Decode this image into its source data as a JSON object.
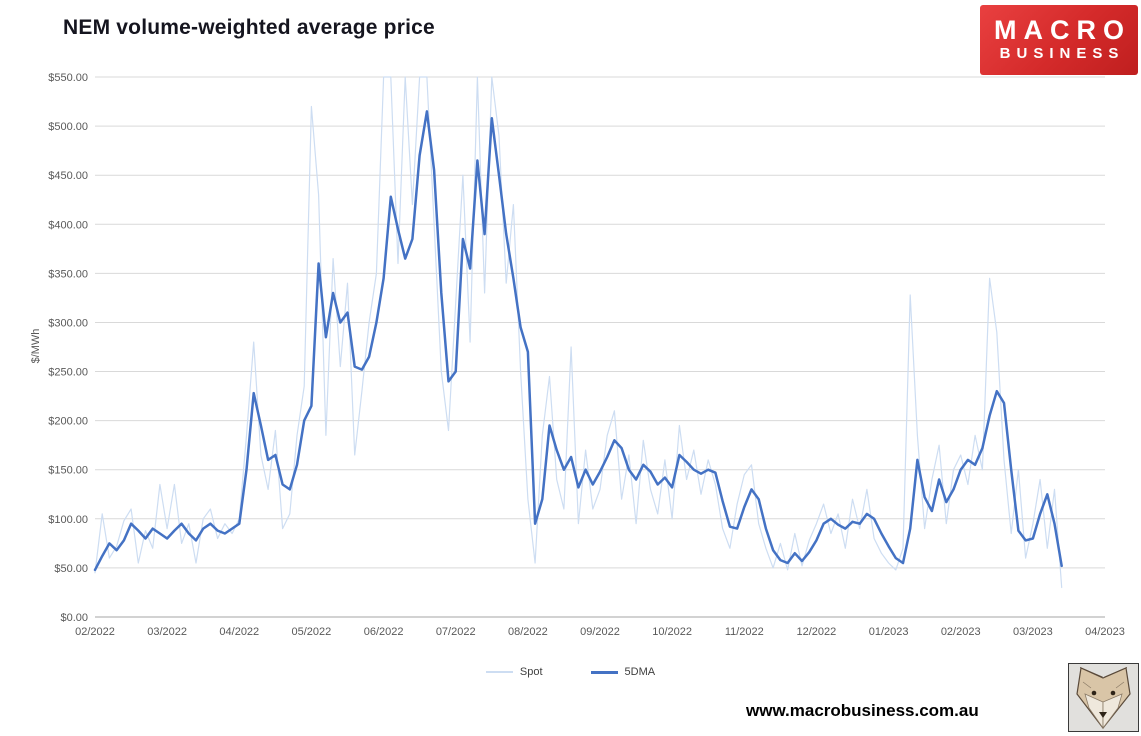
{
  "logo": {
    "line1": "MACRO",
    "line2": "BUSINESS"
  },
  "footer": {
    "url": "www.macrobusiness.com.au"
  },
  "chart_data": {
    "type": "line",
    "title": "NEM volume-weighted average price",
    "ylabel": "$/MWh",
    "ylim": [
      0,
      550
    ],
    "grid": "horizontal",
    "legend_position": "bottom-center",
    "y_ticks": [
      "$0.00",
      "$50.00",
      "$100.00",
      "$150.00",
      "$200.00",
      "$250.00",
      "$300.00",
      "$350.00",
      "$400.00",
      "$450.00",
      "$500.00",
      "$550.00"
    ],
    "x_ticks": [
      "02/2022",
      "03/2022",
      "04/2022",
      "05/2022",
      "06/2022",
      "07/2022",
      "08/2022",
      "09/2022",
      "10/2022",
      "11/2022",
      "12/2022",
      "01/2023",
      "02/2023",
      "03/2023",
      "04/2023"
    ],
    "x_unit": "months from 02/2022",
    "x_start": 0,
    "x_step": 0.1,
    "series": [
      {
        "name": "Spot",
        "color": "#cdddf2",
        "width": 1.2,
        "values": [
          45,
          105,
          60,
          72,
          98,
          110,
          55,
          88,
          70,
          135,
          90,
          135,
          75,
          95,
          55,
          100,
          110,
          80,
          95,
          85,
          100,
          185,
          280,
          165,
          130,
          190,
          90,
          105,
          185,
          235,
          520,
          430,
          185,
          365,
          255,
          340,
          165,
          230,
          300,
          350,
          560,
          575,
          360,
          580,
          420,
          570,
          560,
          400,
          250,
          190,
          320,
          450,
          280,
          560,
          330,
          575,
          490,
          340,
          420,
          250,
          120,
          55,
          185,
          245,
          140,
          110,
          275,
          95,
          170,
          110,
          130,
          185,
          210,
          120,
          165,
          95,
          180,
          130,
          105,
          160,
          100,
          195,
          140,
          170,
          125,
          160,
          135,
          90,
          70,
          115,
          145,
          155,
          95,
          70,
          50,
          75,
          48,
          85,
          52,
          78,
          95,
          115,
          85,
          105,
          70,
          120,
          90,
          130,
          80,
          65,
          55,
          48,
          70,
          328,
          185,
          90,
          140,
          175,
          95,
          150,
          165,
          135,
          185,
          150,
          345,
          290,
          160,
          85,
          150,
          60,
          95,
          140,
          70,
          130,
          30
        ]
      },
      {
        "name": "5DMA",
        "color": "#4472c4",
        "width": 2.5,
        "values": [
          48,
          62,
          75,
          68,
          78,
          95,
          88,
          80,
          90,
          85,
          80,
          88,
          95,
          85,
          78,
          90,
          95,
          88,
          85,
          90,
          95,
          150,
          228,
          195,
          160,
          165,
          135,
          130,
          155,
          200,
          215,
          360,
          285,
          330,
          300,
          310,
          255,
          252,
          265,
          300,
          345,
          428,
          395,
          365,
          385,
          470,
          515,
          455,
          330,
          240,
          250,
          385,
          355,
          465,
          390,
          508,
          450,
          390,
          345,
          295,
          270,
          95,
          120,
          195,
          170,
          150,
          163,
          132,
          150,
          135,
          148,
          163,
          180,
          172,
          150,
          140,
          155,
          148,
          135,
          142,
          132,
          165,
          158,
          150,
          146,
          150,
          147,
          118,
          92,
          90,
          112,
          130,
          120,
          90,
          68,
          58,
          55,
          65,
          57,
          66,
          78,
          95,
          100,
          94,
          90,
          97,
          95,
          105,
          100,
          85,
          72,
          60,
          55,
          90,
          160,
          122,
          108,
          140,
          117,
          130,
          150,
          160,
          155,
          172,
          205,
          230,
          218,
          150,
          88,
          78,
          80,
          105,
          125,
          95,
          52
        ]
      }
    ]
  }
}
